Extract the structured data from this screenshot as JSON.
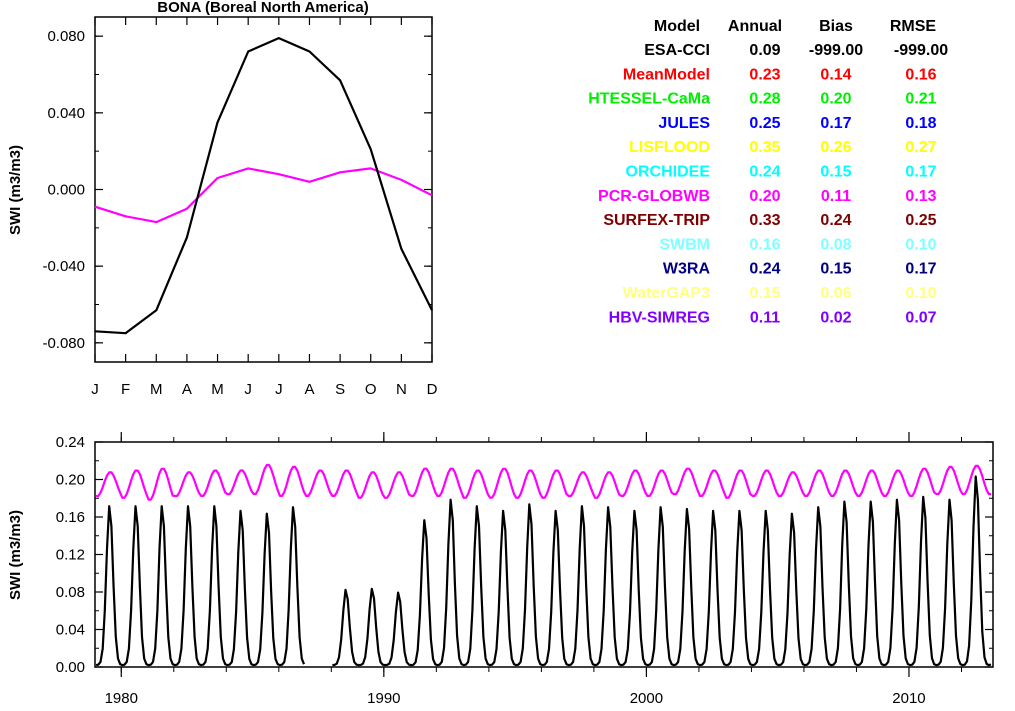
{
  "chart_data": [
    {
      "type": "line",
      "title": "BONA (Boreal North America)",
      "xlabel": "",
      "ylabel": "SWI (m3/m3)",
      "categories": [
        "J",
        "F",
        "M",
        "A",
        "M",
        "J",
        "J",
        "A",
        "S",
        "O",
        "N",
        "D"
      ],
      "ylim": [
        -0.09,
        0.09
      ],
      "yticks": [
        "0.080",
        "0.040",
        "0.000",
        "-0.040",
        "-0.080"
      ],
      "series": [
        {
          "name": "ESA-CCI",
          "color": "#000000",
          "values": [
            -0.074,
            -0.075,
            -0.063,
            -0.025,
            0.035,
            0.072,
            0.079,
            0.072,
            0.057,
            0.021,
            -0.031,
            -0.063
          ]
        },
        {
          "name": "PCR-GLOBWB",
          "color": "#ff00ff",
          "values": [
            -0.009,
            -0.014,
            -0.017,
            -0.01,
            0.006,
            0.011,
            0.008,
            0.004,
            0.009,
            0.011,
            0.005,
            -0.003
          ]
        }
      ]
    },
    {
      "type": "line",
      "title": "",
      "xlabel": "",
      "ylabel": "SWI (m3/m3)",
      "xlim": [
        1979,
        2013.2
      ],
      "ylim": [
        0,
        0.24
      ],
      "xticks": [
        "1980",
        "1990",
        "2000",
        "2010"
      ],
      "yticks": [
        "0.24",
        "0.20",
        "0.16",
        "0.12",
        "0.08",
        "0.04",
        "0.00"
      ],
      "series": [
        {
          "name": "ESA-CCI",
          "color": "#000000",
          "peaks": [
            0.173,
            0.173,
            0.173,
            0.173,
            0.173,
            0.168,
            0.165,
            0.172,
            0.0,
            0.083,
            0.084,
            0.08,
            0.158,
            0.18,
            0.173,
            0.168,
            0.175,
            0.168,
            0.173,
            0.172,
            0.168,
            0.172,
            0.17,
            0.168,
            0.168,
            0.168,
            0.165,
            0.172,
            0.178,
            0.178,
            0.18,
            0.183,
            0.18,
            0.205,
            0.213
          ],
          "troughs": [
            0.002,
            0.002,
            0.002,
            0.002,
            0.002,
            0.002,
            0.002,
            0.002,
            0.0,
            0.002,
            0.002,
            0.002,
            0.002,
            0.002,
            0.002,
            0.002,
            0.002,
            0.002,
            0.002,
            0.002,
            0.002,
            0.002,
            0.002,
            0.002,
            0.002,
            0.002,
            0.002,
            0.002,
            0.002,
            0.002,
            0.002,
            0.002,
            0.002,
            0.002,
            0.002
          ]
        },
        {
          "name": "PCR-GLOBWB",
          "color": "#ff00ff",
          "peaks": [
            0.208,
            0.21,
            0.212,
            0.208,
            0.21,
            0.21,
            0.216,
            0.214,
            0.21,
            0.21,
            0.208,
            0.208,
            0.212,
            0.212,
            0.21,
            0.212,
            0.21,
            0.21,
            0.208,
            0.208,
            0.21,
            0.21,
            0.212,
            0.21,
            0.21,
            0.21,
            0.208,
            0.21,
            0.21,
            0.21,
            0.21,
            0.212,
            0.214,
            0.215,
            0.21
          ],
          "troughs": [
            0.182,
            0.18,
            0.178,
            0.182,
            0.182,
            0.184,
            0.184,
            0.182,
            0.182,
            0.182,
            0.18,
            0.18,
            0.182,
            0.182,
            0.18,
            0.18,
            0.18,
            0.18,
            0.182,
            0.18,
            0.182,
            0.182,
            0.184,
            0.182,
            0.18,
            0.182,
            0.182,
            0.182,
            0.182,
            0.182,
            0.182,
            0.182,
            0.184,
            0.184,
            0.184
          ]
        }
      ]
    }
  ],
  "stats_table": {
    "headers": [
      "Model",
      "Annual",
      "Bias",
      "RMSE"
    ],
    "rows": [
      {
        "model": "ESA-CCI",
        "annual": "0.09",
        "bias": "-999.00",
        "rmse": "-999.00",
        "color": "#000000"
      },
      {
        "model": "MeanModel",
        "annual": "0.23",
        "bias": "0.14",
        "rmse": "0.16",
        "color": "#ff0000"
      },
      {
        "model": "HTESSEL-CaMa",
        "annual": "0.28",
        "bias": "0.20",
        "rmse": "0.21",
        "color": "#00ee00"
      },
      {
        "model": "JULES",
        "annual": "0.25",
        "bias": "0.17",
        "rmse": "0.18",
        "color": "#0000ff"
      },
      {
        "model": "LISFLOOD",
        "annual": "0.35",
        "bias": "0.26",
        "rmse": "0.27",
        "color": "#ffff00"
      },
      {
        "model": "ORCHIDEE",
        "annual": "0.24",
        "bias": "0.15",
        "rmse": "0.17",
        "color": "#00ffff"
      },
      {
        "model": "PCR-GLOBWB",
        "annual": "0.20",
        "bias": "0.11",
        "rmse": "0.13",
        "color": "#ff00ff"
      },
      {
        "model": "SURFEX-TRIP",
        "annual": "0.33",
        "bias": "0.24",
        "rmse": "0.25",
        "color": "#7f0000"
      },
      {
        "model": "SWBM",
        "annual": "0.16",
        "bias": "0.08",
        "rmse": "0.10",
        "color": "#80ffff"
      },
      {
        "model": "W3RA",
        "annual": "0.24",
        "bias": "0.15",
        "rmse": "0.17",
        "color": "#000080"
      },
      {
        "model": "WaterGAP3",
        "annual": "0.15",
        "bias": "0.06",
        "rmse": "0.10",
        "color": "#ffff80"
      },
      {
        "model": "HBV-SIMREG",
        "annual": "0.11",
        "bias": "0.02",
        "rmse": "0.07",
        "color": "#8000ff"
      }
    ]
  }
}
